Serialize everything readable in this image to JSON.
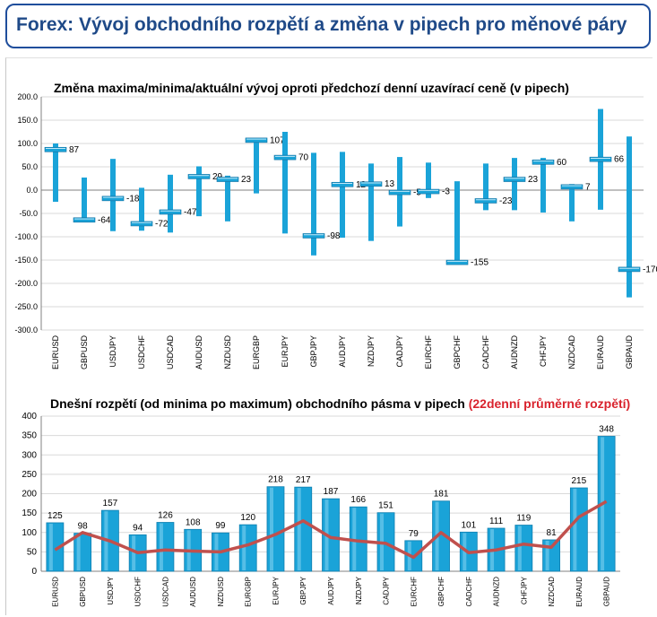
{
  "header": {
    "title": "Forex: Vývoj obchodního rozpětí a změna v pipech pro měnové páry"
  },
  "colors": {
    "accent": "#1f4e9c",
    "bar": "#1aa3d8",
    "line": "#c0504d",
    "title_red": "#d9232d"
  },
  "chart_data": [
    {
      "type": "bar",
      "title": "Změna maxima/minima/aktuální vývoj oproti předchozí denní uzavírací ceně (v pipech)",
      "ylim": [
        -300,
        200
      ],
      "yticks": [
        "200.0",
        "150.0",
        "100.0",
        "50.0",
        "0.0",
        "-50.0",
        "-100.0",
        "-150.0",
        "-200.0",
        "-250.0",
        "-300.0"
      ],
      "categories": [
        "EURUSD",
        "GBPUSD",
        "USDJPY",
        "USDCHF",
        "USDCAD",
        "AUDUSD",
        "NZDUSD",
        "EURGBP",
        "EURJPY",
        "GBPJPY",
        "AUDJPY",
        "NZDJPY",
        "CADJPY",
        "EURCHF",
        "GBPCHF",
        "CADCHF",
        "AUDNZD",
        "CHFJPY",
        "NZDCAD",
        "EURAUD",
        "GBPAUD"
      ],
      "series": [
        {
          "role": "high",
          "values": [
            100,
            27,
            67,
            5,
            33,
            51,
            31,
            109,
            125,
            80,
            82,
            57,
            71,
            59,
            19,
            57,
            69,
            69,
            13,
            174,
            115
          ]
        },
        {
          "role": "low",
          "values": [
            -25,
            -69,
            -88,
            -87,
            -91,
            -56,
            -67,
            -7,
            -93,
            -140,
            -102,
            -109,
            -78,
            -17,
            -158,
            -43,
            -43,
            -48,
            -67,
            -42,
            -230
          ]
        },
        {
          "role": "current",
          "values": [
            87,
            -64,
            -18,
            -72,
            -47,
            29,
            23,
            107,
            70,
            -98,
            12,
            13,
            -5,
            -3,
            -155,
            -23,
            23,
            60,
            7,
            66,
            -170
          ]
        }
      ],
      "data_labels": [
        "87",
        "-64",
        "-18",
        "-72",
        "-47",
        "29",
        "23",
        "107",
        "70",
        "-98",
        "12",
        "13",
        "-5",
        "-3",
        "-155",
        "-23",
        "23",
        "60",
        "7",
        "66",
        "-170"
      ],
      "grid": true
    },
    {
      "type": "bar",
      "title": "Dnešní rozpětí (od minima po maximum) obchodního pásma v pipech",
      "title_suffix": "(22denní průměrné rozpětí)",
      "ylim": [
        0,
        400
      ],
      "yticks": [
        "400",
        "350",
        "300",
        "250",
        "200",
        "150",
        "100",
        "50",
        "0"
      ],
      "categories": [
        "EURUSD",
        "GBPUSD",
        "USDJPY",
        "USDCHF",
        "USDCAD",
        "AUDUSD",
        "NZDUSD",
        "EURGBP",
        "EURJPY",
        "GBPJPY",
        "AUDJPY",
        "NZDJPY",
        "CADJPY",
        "EURCHF",
        "GBPCHF",
        "CADCHF",
        "AUDNZD",
        "CHFJPY",
        "NZDCAD",
        "EURAUD",
        "GBPAUD"
      ],
      "series": [
        {
          "role": "range",
          "values": [
            125,
            98,
            157,
            94,
            126,
            108,
            99,
            120,
            218,
            217,
            187,
            166,
            151,
            79,
            181,
            101,
            111,
            119,
            81,
            215,
            348
          ]
        },
        {
          "role": "average_22d",
          "values": [
            55,
            100,
            78,
            48,
            55,
            52,
            50,
            68,
            95,
            130,
            87,
            78,
            72,
            36,
            100,
            48,
            55,
            70,
            62,
            140,
            180
          ]
        }
      ],
      "data_labels": [
        "125",
        "98",
        "157",
        "94",
        "126",
        "108",
        "99",
        "120",
        "218",
        "217",
        "187",
        "166",
        "151",
        "79",
        "181",
        "101",
        "111",
        "119",
        "81",
        "215",
        "348"
      ],
      "grid": true
    }
  ]
}
